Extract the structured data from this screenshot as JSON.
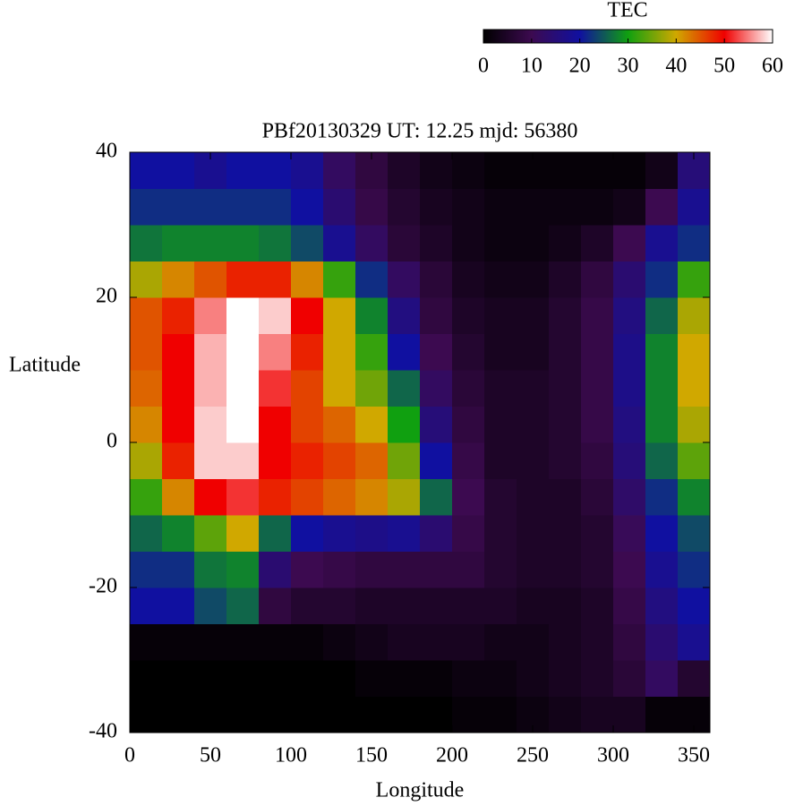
{
  "chart_data": {
    "type": "heatmap",
    "title": "PBf20130329  UT: 12.25  mjd: 56380",
    "x_label": "Longitude",
    "y_label": "Latitude",
    "colorbar_label": "TEC",
    "xlim": [
      0,
      360
    ],
    "xticks": [
      0,
      50,
      100,
      150,
      200,
      250,
      300,
      350
    ],
    "ylim": [
      -40,
      40
    ],
    "yticks": [
      -40,
      -20,
      0,
      20,
      40
    ],
    "clim": [
      0,
      60
    ],
    "cticks": [
      0,
      10,
      20,
      30,
      40,
      50,
      60
    ],
    "palette": [
      "#000000",
      "#3c0a50",
      "#1010a0",
      "#10a010",
      "#d0a800",
      "#f00000",
      "#ffffff"
    ],
    "xbins": [
      0,
      20,
      40,
      60,
      80,
      100,
      120,
      140,
      160,
      180,
      200,
      220,
      240,
      260,
      280,
      300,
      320,
      340,
      360
    ],
    "ybins": [
      -40,
      -35,
      -30,
      -25,
      -20,
      -15,
      -10,
      -5,
      0,
      5,
      10,
      15,
      20,
      25,
      30,
      35,
      40
    ],
    "values": [
      [
        0,
        0,
        0,
        0,
        0,
        0,
        0,
        0,
        0,
        0,
        1,
        1,
        2,
        3,
        4,
        4,
        1,
        1
      ],
      [
        0,
        0,
        0,
        0,
        0,
        0,
        0,
        1,
        1,
        1,
        2,
        2,
        3,
        4,
        5,
        7,
        12,
        6
      ],
      [
        1,
        1,
        1,
        1,
        1,
        1,
        2,
        3,
        4,
        4,
        4,
        3,
        3,
        4,
        5,
        8,
        14,
        18
      ],
      [
        20,
        20,
        24,
        26,
        8,
        6,
        6,
        5,
        5,
        5,
        5,
        5,
        4,
        4,
        5,
        9,
        16,
        20
      ],
      [
        22,
        22,
        27,
        28,
        14,
        10,
        9,
        8,
        8,
        8,
        8,
        6,
        5,
        5,
        6,
        10,
        18,
        22
      ],
      [
        26,
        28,
        34,
        40,
        26,
        20,
        18,
        17,
        18,
        14,
        9,
        6,
        5,
        5,
        6,
        11,
        20,
        24
      ],
      [
        32,
        42,
        50,
        52,
        48,
        46,
        44,
        42,
        38,
        26,
        10,
        6,
        5,
        5,
        7,
        13,
        22,
        28
      ],
      [
        38,
        48,
        58,
        58,
        50,
        48,
        46,
        44,
        35,
        20,
        9,
        5,
        5,
        6,
        8,
        15,
        26,
        34
      ],
      [
        42,
        50,
        58,
        60,
        50,
        46,
        44,
        40,
        30,
        15,
        8,
        5,
        5,
        6,
        9,
        16,
        28,
        38
      ],
      [
        44,
        50,
        57,
        60,
        52,
        46,
        40,
        35,
        26,
        12,
        7,
        5,
        5,
        6,
        9,
        17,
        28,
        40
      ],
      [
        45,
        50,
        57,
        60,
        55,
        48,
        40,
        32,
        20,
        10,
        6,
        4,
        4,
        6,
        9,
        17,
        28,
        40
      ],
      [
        45,
        48,
        55,
        60,
        58,
        50,
        40,
        28,
        16,
        8,
        5,
        4,
        4,
        6,
        9,
        16,
        26,
        38
      ],
      [
        38,
        42,
        45,
        48,
        48,
        42,
        32,
        22,
        12,
        7,
        4,
        3,
        3,
        5,
        8,
        14,
        22,
        32
      ],
      [
        27,
        28,
        28,
        28,
        27,
        24,
        18,
        12,
        7,
        5,
        3,
        2,
        2,
        3,
        5,
        10,
        18,
        22
      ],
      [
        22,
        22,
        22,
        22,
        22,
        20,
        14,
        9,
        6,
        4,
        3,
        2,
        2,
        2,
        2,
        3,
        10,
        18
      ],
      [
        20,
        20,
        18,
        20,
        20,
        18,
        12,
        8,
        5,
        3,
        2,
        1,
        1,
        1,
        1,
        1,
        3,
        15
      ]
    ]
  }
}
